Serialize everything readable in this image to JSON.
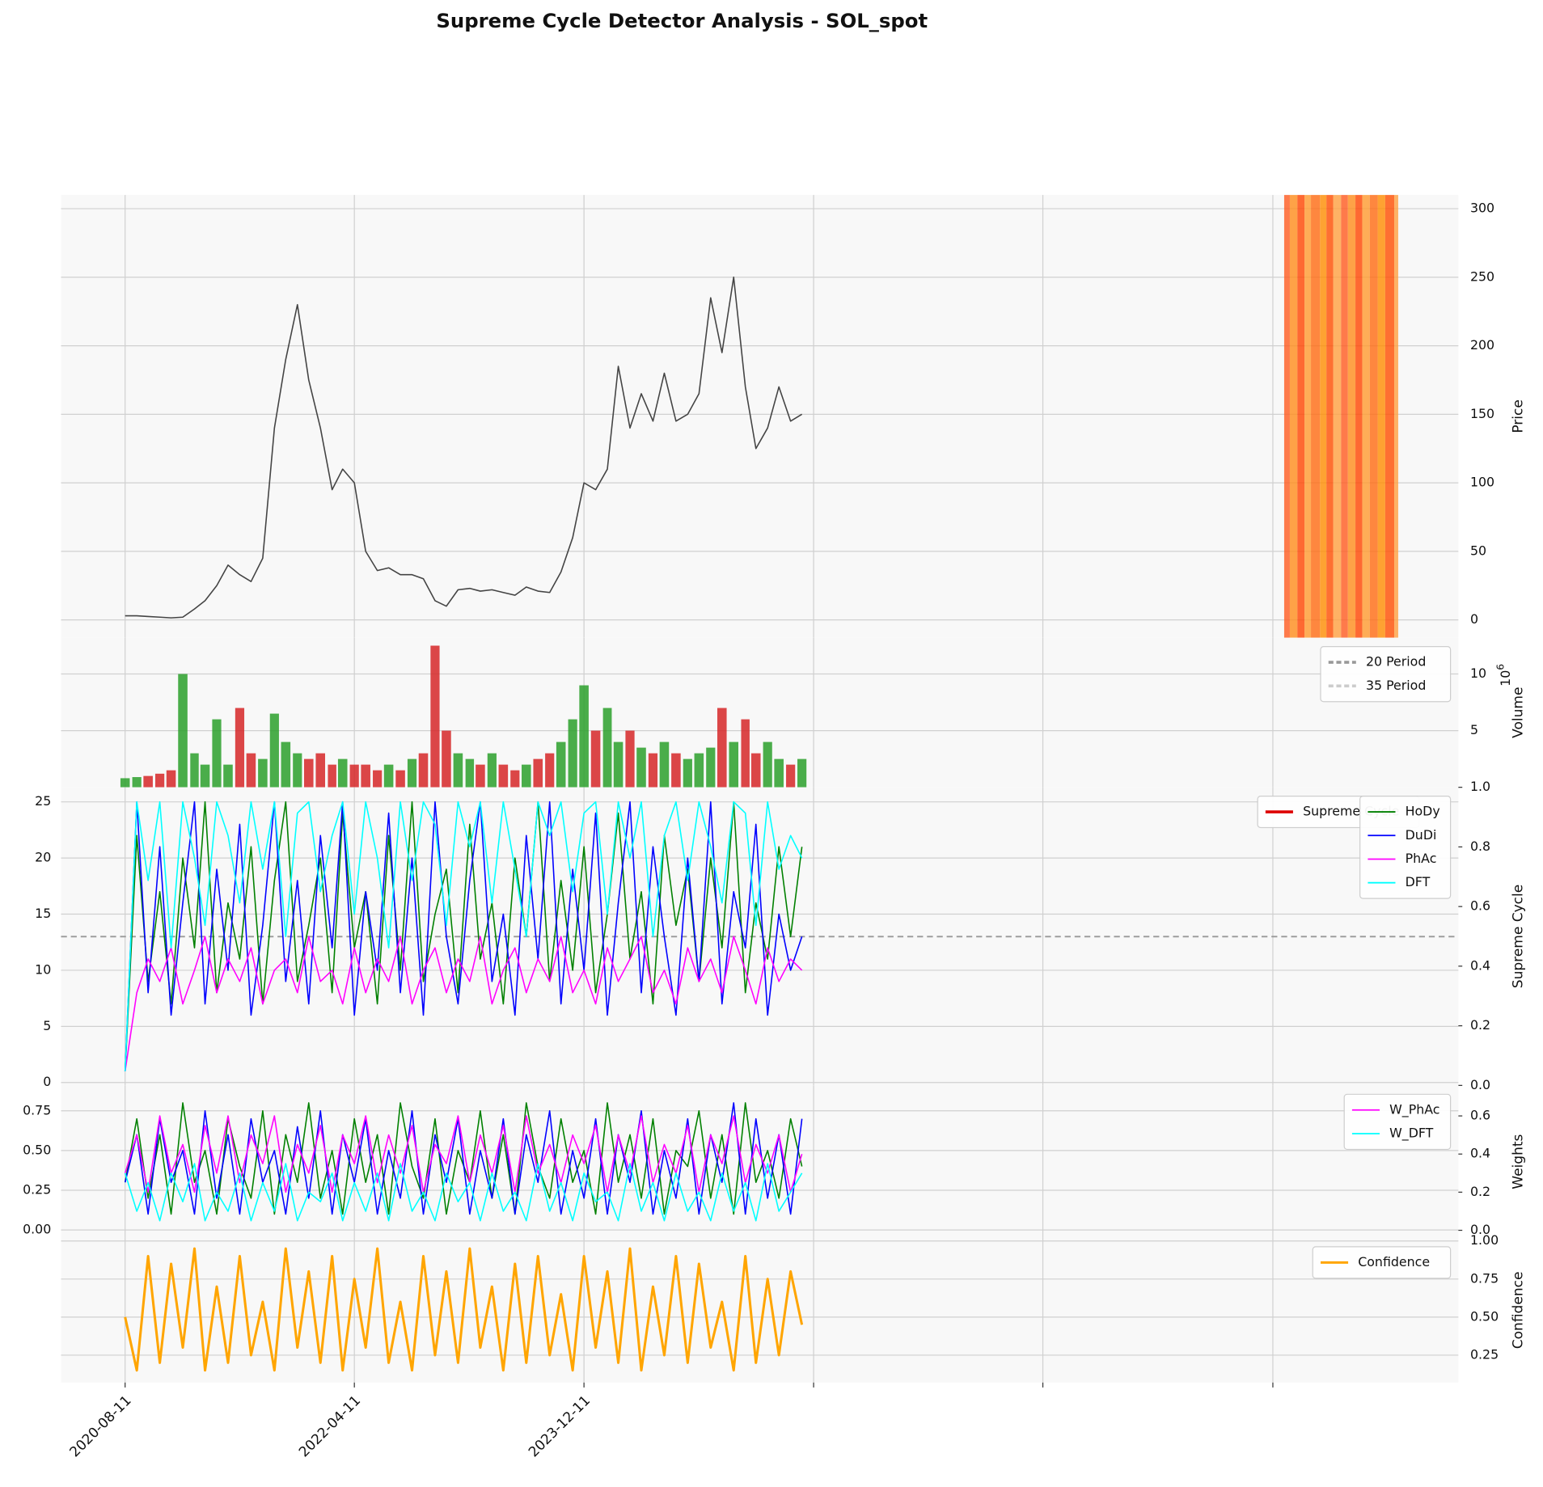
{
  "chart_data": {
    "type": "panels",
    "title": "Supreme Cycle Detector Analysis - SOL_spot",
    "x": [
      "2020-08-11",
      "2020-09-11",
      "2020-10-11",
      "2020-11-11",
      "2020-12-11",
      "2021-01-11",
      "2021-02-11",
      "2021-03-11",
      "2021-04-11",
      "2021-05-11",
      "2021-06-11",
      "2021-07-11",
      "2021-08-11",
      "2021-09-11",
      "2021-10-11",
      "2021-11-11",
      "2021-12-11",
      "2022-01-11",
      "2022-02-11",
      "2022-03-11",
      "2022-04-11",
      "2022-05-11",
      "2022-06-11",
      "2022-07-11",
      "2022-08-11",
      "2022-09-11",
      "2022-10-11",
      "2022-11-11",
      "2022-12-11",
      "2023-01-11",
      "2023-02-11",
      "2023-03-11",
      "2023-04-11",
      "2023-05-11",
      "2023-06-11",
      "2023-07-11",
      "2023-08-11",
      "2023-09-11",
      "2023-10-11",
      "2023-11-11",
      "2023-12-11",
      "2024-01-11",
      "2024-02-11",
      "2024-03-11",
      "2024-04-11",
      "2024-05-11",
      "2024-06-11",
      "2024-07-11",
      "2024-08-11",
      "2024-09-11",
      "2024-10-11",
      "2024-11-11",
      "2024-12-11",
      "2025-01-11",
      "2025-02-11",
      "2025-03-11",
      "2025-04-11",
      "2025-05-11",
      "2025-06-11",
      "2025-07-11"
    ],
    "xlim": [
      "2020-02-23",
      "2030-04-17"
    ],
    "xticks": [
      "2020-08-11",
      "2022-04-11",
      "2023-12-11",
      {
        "value": "2025-08-11",
        "label": null
      },
      {
        "value": "2027-04-11",
        "label": null
      },
      {
        "value": "2028-12-11",
        "label": null
      }
    ],
    "grid": true,
    "panels": [
      {
        "type": "line",
        "ylabel": "Price",
        "ylim": [
          -13,
          310
        ],
        "yticks": [
          0,
          50,
          100,
          150,
          200,
          250,
          300
        ],
        "ytick_side": "right",
        "series": [
          {
            "color": "#444444",
            "values": [
              3,
              3,
              2.5,
              2,
              1.5,
              2,
              8,
              14,
              25,
              40,
              33,
              28,
              45,
              140,
              190,
              230,
              175,
              140,
              95,
              110,
              100,
              50,
              36,
              38,
              33,
              33,
              30,
              14,
              10,
              22,
              23,
              21,
              22,
              20,
              18,
              24,
              21,
              20,
              35,
              60,
              100,
              95,
              110,
              185,
              140,
              165,
              145,
              180,
              145,
              150,
              165,
              235,
              195,
              250,
              170,
              125,
              140,
              170,
              145,
              150
            ]
          }
        ],
        "highlights": {
          "x": [
            "2029-01-10",
            "2029-01-25",
            "2029-02-14",
            "2029-03-05",
            "2029-03-22",
            "2029-04-15",
            "2029-05-02",
            "2029-05-20",
            "2029-06-10",
            "2029-06-28",
            "2029-07-18",
            "2029-08-05",
            "2029-08-25",
            "2029-09-15",
            "2029-10-05",
            "2029-10-29"
          ],
          "colors": [
            "#ff5a1f",
            "#ff8c1a",
            "#ff4500",
            "#ff9a2e",
            "#ff6a10",
            "#ff8c00",
            "#ff4d00",
            "#ffa040",
            "#ff5a1f",
            "#ff8c1a",
            "#ff4500",
            "#ff9a2e",
            "#ff6a10",
            "#ff8c00",
            "#ff4d00",
            "#ffa040"
          ]
        }
      },
      {
        "type": "bar",
        "ylabel": "Volume",
        "offset_text": {
          "base": "10",
          "exp": "6"
        },
        "ylim": [
          0,
          13.2
        ],
        "yticks": [
          5,
          10
        ],
        "ytick_side": "right",
        "up_color": "#2ca02c",
        "down_color": "#d62728",
        "series": [
          {
            "values": [
              0.8,
              0.9,
              1.0,
              1.2,
              1.5,
              10,
              3,
              2,
              6,
              2,
              7,
              3,
              2.5,
              6.5,
              4,
              3,
              2.5,
              3,
              2,
              2.5,
              2,
              2,
              1.5,
              2,
              1.5,
              2.5,
              3,
              12.5,
              5,
              3,
              2.5,
              2,
              3,
              2,
              1.5,
              2,
              2.5,
              3,
              4,
              6,
              9,
              5,
              7,
              4,
              5,
              3.5,
              3,
              4,
              3,
              2.5,
              3,
              3.5,
              7,
              4,
              6,
              3,
              4,
              2.5,
              2,
              2.5
            ]
          }
        ],
        "legend_extra": [
          {
            "name": "20 Period",
            "color": "#999999",
            "dashed": true
          },
          {
            "name": "35 Period",
            "color": "#cccccc",
            "dashed": true
          }
        ]
      },
      {
        "type": "line",
        "ylabel": "Supreme Cycle",
        "ylim": [
          -0.26,
          26.3
        ],
        "yticks": [
          0,
          5,
          10,
          15,
          20,
          25
        ],
        "ytick_side": "left",
        "y2lim": [
          0,
          1
        ],
        "y2ticks": [
          {
            "value": 0,
            "label": "0.0"
          },
          {
            "value": 0.2,
            "label": "0.2"
          },
          {
            "value": 0.4,
            "label": "0.4"
          },
          {
            "value": 0.6,
            "label": "0.6"
          },
          {
            "value": 0.8,
            "label": "0.8"
          },
          {
            "value": 1,
            "label": "1.0"
          }
        ],
        "hline": 13,
        "legend_extra": [
          {
            "name": "Supreme Cycle",
            "color": "#dd0000"
          }
        ],
        "series": [
          {
            "name": "HoDy",
            "color": "#008000",
            "values": [
              1,
              22,
              9,
              17,
              7,
              20,
              12,
              25,
              8,
              16,
              11,
              21,
              7,
              18,
              25,
              9,
              14,
              20,
              8,
              24,
              12,
              17,
              7,
              22,
              10,
              25,
              9,
              15,
              19,
              8,
              23,
              11,
              16,
              7,
              20,
              13,
              25,
              9,
              18,
              10,
              21,
              8,
              15,
              24,
              11,
              17,
              7,
              22,
              14,
              19,
              9,
              20,
              12,
              25,
              8,
              16,
              11,
              21,
              13,
              21
            ]
          },
          {
            "name": "DuDi",
            "color": "#0000ff",
            "values": [
              1,
              25,
              8,
              21,
              6,
              16,
              25,
              7,
              19,
              10,
              23,
              6,
              14,
              25,
              9,
              18,
              7,
              22,
              12,
              25,
              6,
              17,
              10,
              24,
              8,
              20,
              6,
              25,
              13,
              7,
              18,
              25,
              9,
              15,
              6,
              22,
              11,
              25,
              7,
              19,
              10,
              24,
              6,
              16,
              25,
              8,
              21,
              13,
              6,
              20,
              9,
              25,
              7,
              17,
              12,
              23,
              6,
              15,
              10,
              13
            ]
          },
          {
            "name": "PhAc",
            "color": "#ff00ff",
            "values": [
              1,
              8,
              11,
              9,
              12,
              7,
              10,
              13,
              8,
              11,
              9,
              12,
              7,
              10,
              11,
              8,
              13,
              9,
              10,
              7,
              12,
              8,
              11,
              9,
              13,
              7,
              10,
              12,
              8,
              11,
              9,
              13,
              7,
              10,
              12,
              8,
              11,
              9,
              13,
              8,
              10,
              7,
              12,
              9,
              11,
              13,
              8,
              10,
              7,
              12,
              9,
              11,
              8,
              13,
              10,
              7,
              12,
              9,
              11,
              10
            ]
          },
          {
            "name": "DFT",
            "color": "#00ffff",
            "values": [
              1,
              25,
              18,
              25,
              12,
              25,
              20,
              14,
              25,
              22,
              16,
              25,
              19,
              25,
              13,
              24,
              25,
              17,
              22,
              25,
              15,
              25,
              20,
              12,
              25,
              18,
              25,
              23,
              14,
              25,
              21,
              25,
              16,
              25,
              19,
              13,
              25,
              22,
              25,
              17,
              24,
              25,
              15,
              25,
              20,
              25,
              13,
              22,
              25,
              18,
              25,
              21,
              16,
              25,
              24,
              14,
              25,
              19,
              22,
              20
            ]
          }
        ]
      },
      {
        "type": "line",
        "ylabel": "Weights",
        "ylim": [
          -0.05,
          0.91
        ],
        "yticks": [
          {
            "value": 0,
            "label": "0.00"
          },
          {
            "value": 0.25,
            "label": "0.25"
          },
          {
            "value": 0.5,
            "label": "0.50"
          },
          {
            "value": 0.75,
            "label": "0.75"
          }
        ],
        "ytick_side": "left",
        "y2lim": [
          -0.04,
          0.76
        ],
        "y2ticks": [
          {
            "value": 0,
            "label": "0.0"
          },
          {
            "value": 0.2,
            "label": "0.2"
          },
          {
            "value": 0.4,
            "label": "0.4"
          },
          {
            "value": 0.6,
            "label": "0.6"
          }
        ],
        "series": [
          {
            "color": "#008000",
            "values": [
              0.3,
              0.7,
              0.2,
              0.6,
              0.1,
              0.8,
              0.3,
              0.5,
              0.1,
              0.7,
              0.4,
              0.2,
              0.75,
              0.1,
              0.6,
              0.3,
              0.8,
              0.2,
              0.5,
              0.1,
              0.7,
              0.3,
              0.6,
              0.1,
              0.8,
              0.4,
              0.2,
              0.7,
              0.1,
              0.5,
              0.3,
              0.75,
              0.2,
              0.6,
              0.1,
              0.8,
              0.4,
              0.2,
              0.7,
              0.3,
              0.5,
              0.1,
              0.8,
              0.3,
              0.6,
              0.2,
              0.7,
              0.1,
              0.5,
              0.4,
              0.75,
              0.2,
              0.6,
              0.1,
              0.8,
              0.3,
              0.5,
              0.2,
              0.7,
              0.4
            ]
          },
          {
            "color": "#0000ff",
            "values": [
              0.3,
              0.6,
              0.1,
              0.7,
              0.3,
              0.5,
              0.1,
              0.75,
              0.2,
              0.6,
              0.1,
              0.7,
              0.3,
              0.5,
              0.1,
              0.65,
              0.2,
              0.75,
              0.1,
              0.6,
              0.3,
              0.7,
              0.1,
              0.5,
              0.2,
              0.75,
              0.1,
              0.6,
              0.3,
              0.7,
              0.1,
              0.5,
              0.2,
              0.7,
              0.1,
              0.6,
              0.3,
              0.75,
              0.1,
              0.5,
              0.2,
              0.7,
              0.1,
              0.6,
              0.3,
              0.75,
              0.1,
              0.5,
              0.2,
              0.7,
              0.1,
              0.6,
              0.3,
              0.8,
              0.1,
              0.7,
              0.2,
              0.6,
              0.1,
              0.7
            ]
          },
          {
            "name": "W_PhAc",
            "color": "#ff00ff",
            "axis": "y2",
            "values": [
              0.3,
              0.5,
              0.2,
              0.6,
              0.3,
              0.45,
              0.2,
              0.55,
              0.3,
              0.6,
              0.25,
              0.5,
              0.35,
              0.6,
              0.2,
              0.45,
              0.3,
              0.55,
              0.2,
              0.5,
              0.35,
              0.6,
              0.25,
              0.5,
              0.3,
              0.55,
              0.2,
              0.45,
              0.35,
              0.6,
              0.25,
              0.5,
              0.3,
              0.55,
              0.2,
              0.6,
              0.3,
              0.45,
              0.25,
              0.5,
              0.35,
              0.55,
              0.2,
              0.5,
              0.3,
              0.6,
              0.25,
              0.45,
              0.3,
              0.55,
              0.2,
              0.5,
              0.35,
              0.6,
              0.25,
              0.45,
              0.3,
              0.5,
              0.2,
              0.4
            ]
          },
          {
            "name": "W_DFT",
            "color": "#00ffff",
            "axis": "y2",
            "values": [
              0.3,
              0.1,
              0.25,
              0.05,
              0.3,
              0.15,
              0.35,
              0.05,
              0.2,
              0.1,
              0.3,
              0.05,
              0.25,
              0.1,
              0.35,
              0.05,
              0.2,
              0.15,
              0.3,
              0.05,
              0.25,
              0.1,
              0.3,
              0.05,
              0.35,
              0.1,
              0.2,
              0.05,
              0.3,
              0.15,
              0.25,
              0.05,
              0.3,
              0.1,
              0.2,
              0.05,
              0.35,
              0.1,
              0.25,
              0.05,
              0.3,
              0.15,
              0.2,
              0.05,
              0.35,
              0.1,
              0.25,
              0.05,
              0.3,
              0.1,
              0.2,
              0.05,
              0.3,
              0.1,
              0.25,
              0.05,
              0.35,
              0.1,
              0.2,
              0.3
            ]
          }
        ]
      },
      {
        "type": "line",
        "ylabel": "Confidence",
        "ylim": [
          0.07,
          1.02
        ],
        "yticks": [
          {
            "value": 0.25,
            "label": "0.25"
          },
          {
            "value": 0.5,
            "label": "0.50"
          },
          {
            "value": 0.75,
            "label": "0.75"
          },
          {
            "value": 1,
            "label": "1.00"
          }
        ],
        "ytick_side": "right",
        "series": [
          {
            "name": "Confidence",
            "color": "#ffa500",
            "width": 2.5,
            "values": [
              0.5,
              0.15,
              0.9,
              0.2,
              0.85,
              0.3,
              0.95,
              0.15,
              0.7,
              0.2,
              0.9,
              0.25,
              0.6,
              0.15,
              0.95,
              0.3,
              0.8,
              0.2,
              0.9,
              0.15,
              0.75,
              0.3,
              0.95,
              0.2,
              0.6,
              0.15,
              0.9,
              0.25,
              0.8,
              0.2,
              0.95,
              0.3,
              0.7,
              0.15,
              0.85,
              0.2,
              0.9,
              0.25,
              0.65,
              0.15,
              0.9,
              0.3,
              0.8,
              0.2,
              0.95,
              0.15,
              0.7,
              0.25,
              0.9,
              0.2,
              0.85,
              0.3,
              0.6,
              0.15,
              0.9,
              0.2,
              0.75,
              0.25,
              0.8,
              0.45
            ]
          }
        ]
      }
    ]
  }
}
